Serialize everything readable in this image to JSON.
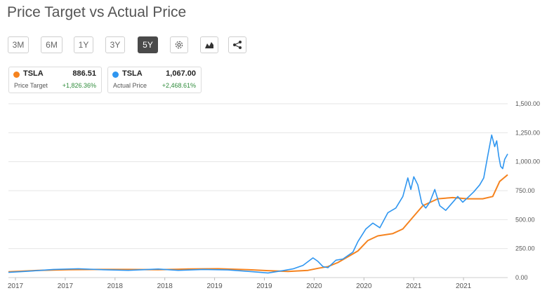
{
  "title": "Price Target vs Actual Price",
  "range_buttons": [
    "3M",
    "6M",
    "1Y",
    "3Y",
    "5Y"
  ],
  "active_range": "5Y",
  "toolbar_icons": [
    "gear-icon",
    "area-chart-icon",
    "share-icon"
  ],
  "cards": [
    {
      "ticker": "TSLA",
      "value": "886.51",
      "sub": "Price Target",
      "change": "+1,826.36%",
      "color": "#f5831f"
    },
    {
      "ticker": "TSLA",
      "value": "1,067.00",
      "sub": "Actual Price",
      "change": "+2,468.61%",
      "color": "#2f96f0"
    }
  ],
  "chart_data": {
    "type": "line",
    "title": "Price Target vs Actual Price",
    "xlabel": "",
    "ylabel": "",
    "x_ticks": [
      "2017",
      "2017",
      "2018",
      "2018",
      "2019",
      "2019",
      "2020",
      "2020",
      "2021",
      "2021"
    ],
    "y_ticks": [
      "1,500.00",
      "1,250.00",
      "1,000.00",
      "750.00",
      "500.00",
      "250.00",
      "0.00"
    ],
    "ylim": [
      0,
      1500
    ],
    "xlim": [
      2017.0,
      2022.0
    ],
    "grid": true,
    "series": [
      {
        "name": "Price Target",
        "color": "#f5831f",
        "x": [
          2017.0,
          2017.3,
          2017.6,
          2017.9,
          2018.2,
          2018.5,
          2018.8,
          2019.1,
          2019.4,
          2019.6,
          2019.8,
          2020.0,
          2020.1,
          2020.2,
          2020.3,
          2020.5,
          2020.6,
          2020.7,
          2020.85,
          2020.95,
          2021.05,
          2021.15,
          2021.3,
          2021.45,
          2021.6,
          2021.75,
          2021.85,
          2021.92,
          2022.0
        ],
        "y": [
          50,
          62,
          68,
          70,
          70,
          68,
          74,
          76,
          68,
          60,
          53,
          62,
          80,
          95,
          130,
          230,
          320,
          360,
          380,
          420,
          520,
          620,
          680,
          690,
          680,
          680,
          700,
          830,
          887
        ]
      },
      {
        "name": "Actual Price",
        "color": "#2f96f0",
        "x": [
          2017.0,
          2017.2,
          2017.45,
          2017.7,
          2017.95,
          2018.2,
          2018.5,
          2018.7,
          2018.95,
          2019.2,
          2019.45,
          2019.6,
          2019.75,
          2019.85,
          2019.95,
          2020.05,
          2020.1,
          2020.15,
          2020.2,
          2020.28,
          2020.35,
          2020.45,
          2020.5,
          2020.58,
          2020.65,
          2020.72,
          2020.8,
          2020.88,
          2020.95,
          2021.0,
          2021.03,
          2021.06,
          2021.1,
          2021.14,
          2021.18,
          2021.22,
          2021.27,
          2021.32,
          2021.38,
          2021.44,
          2021.5,
          2021.55,
          2021.6,
          2021.66,
          2021.72,
          2021.76,
          2021.8,
          2021.84,
          2021.87,
          2021.89,
          2021.91,
          2021.93,
          2021.95,
          2021.97,
          2022.0
        ],
        "y": [
          45,
          55,
          70,
          76,
          68,
          62,
          74,
          62,
          70,
          66,
          50,
          40,
          60,
          75,
          105,
          170,
          140,
          95,
          85,
          150,
          160,
          220,
          310,
          420,
          470,
          430,
          560,
          600,
          700,
          860,
          760,
          870,
          800,
          640,
          600,
          650,
          760,
          620,
          580,
          640,
          700,
          650,
          690,
          740,
          800,
          860,
          1050,
          1230,
          1130,
          1180,
          1050,
          960,
          940,
          1020,
          1067
        ]
      }
    ]
  }
}
